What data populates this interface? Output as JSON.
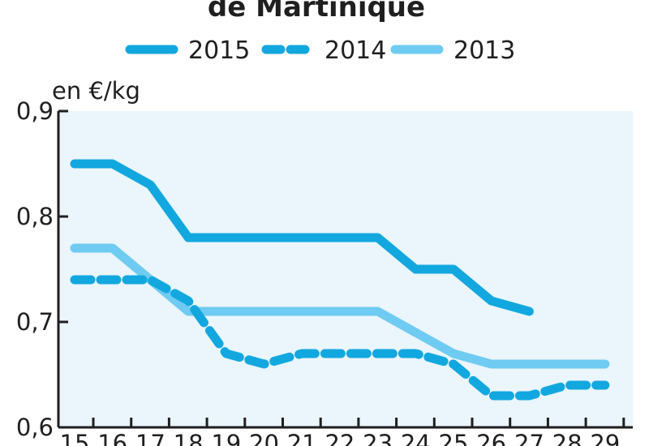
{
  "chart_data": {
    "type": "line",
    "title": "de Martinique",
    "ylabel": "en €/kg",
    "xlabel": "",
    "categories": [
      "15",
      "16",
      "17",
      "18",
      "19",
      "20",
      "21",
      "22",
      "23",
      "24",
      "25",
      "26",
      "27",
      "28",
      "29"
    ],
    "ylim": [
      0.6,
      0.9
    ],
    "yticks": [
      "0,6",
      "0,7",
      "0,8",
      "0,9"
    ],
    "yticks_values": [
      0.6,
      0.7,
      0.8,
      0.9
    ],
    "grid": false,
    "legend_position": "top",
    "series": [
      {
        "name": "2015",
        "style": "solid",
        "color": "#12a8df",
        "points": [
          [
            15,
            0.85
          ],
          [
            15.5,
            0.85
          ],
          [
            16,
            0.85
          ],
          [
            17,
            0.83
          ],
          [
            18,
            0.78
          ],
          [
            19,
            0.78
          ],
          [
            20,
            0.78
          ],
          [
            21,
            0.78
          ],
          [
            22,
            0.78
          ],
          [
            23,
            0.78
          ],
          [
            24,
            0.75
          ],
          [
            25,
            0.75
          ],
          [
            26,
            0.72
          ],
          [
            27,
            0.71
          ]
        ]
      },
      {
        "name": "2014",
        "style": "dashed",
        "color": "#12a8df",
        "points": [
          [
            15,
            0.74
          ],
          [
            16,
            0.74
          ],
          [
            17,
            0.74
          ],
          [
            18,
            0.72
          ],
          [
            19,
            0.67
          ],
          [
            20,
            0.66
          ],
          [
            21,
            0.67
          ],
          [
            22,
            0.67
          ],
          [
            23,
            0.67
          ],
          [
            24,
            0.67
          ],
          [
            25,
            0.66
          ],
          [
            26,
            0.63
          ],
          [
            27,
            0.63
          ],
          [
            28,
            0.64
          ],
          [
            29,
            0.64
          ]
        ]
      },
      {
        "name": "2013",
        "style": "solid",
        "color": "#6fcbf1",
        "points": [
          [
            15,
            0.77
          ],
          [
            16,
            0.77
          ],
          [
            17,
            0.74
          ],
          [
            18,
            0.71
          ],
          [
            19,
            0.71
          ],
          [
            20,
            0.71
          ],
          [
            21,
            0.71
          ],
          [
            22,
            0.71
          ],
          [
            23,
            0.71
          ],
          [
            24,
            0.69
          ],
          [
            25,
            0.67
          ],
          [
            26,
            0.66
          ],
          [
            27,
            0.66
          ],
          [
            28,
            0.66
          ],
          [
            29,
            0.66
          ]
        ]
      }
    ]
  },
  "colors": {
    "plot_background": "#eaf5fc",
    "axis": "#1f1f1f"
  }
}
